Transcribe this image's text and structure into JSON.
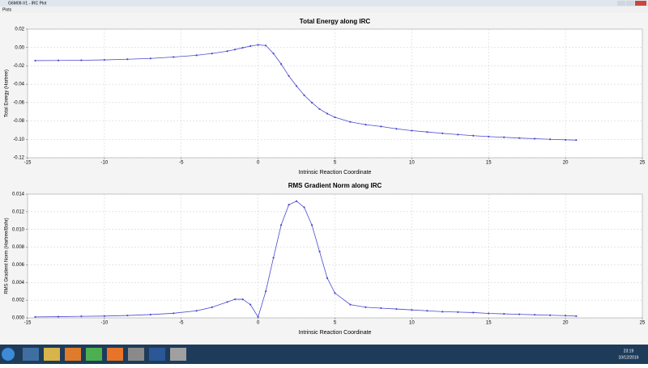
{
  "window": {
    "title": "G6M09-V1 - IRC Plot",
    "menu": [
      "Plots"
    ]
  },
  "chart_data": [
    {
      "type": "line",
      "title": "Total Energy along IRC",
      "x_label": "Intrinsic Reaction Coordinate",
      "y_label": "Total Energy (Hartree)",
      "x": [
        -14.5,
        -13,
        -11.5,
        -10,
        -8.5,
        -7,
        -5.5,
        -4,
        -3,
        -2,
        -1.5,
        -1,
        -0.5,
        0,
        0.5,
        1,
        1.5,
        2,
        2.5,
        3,
        3.5,
        4,
        4.5,
        5,
        6,
        7,
        8,
        9,
        10,
        11,
        12,
        13,
        14,
        15,
        16,
        17,
        18,
        19,
        20,
        20.7
      ],
      "series": [
        {
          "color": "#4a4ad0",
          "values": [
            -0.0143,
            -0.0141,
            -0.0139,
            -0.0135,
            -0.0128,
            -0.0119,
            -0.0104,
            -0.0085,
            -0.0065,
            -0.004,
            -0.0022,
            -0.0003,
            0.0015,
            0.0028,
            0.0022,
            -0.0065,
            -0.018,
            -0.031,
            -0.042,
            -0.052,
            -0.06,
            -0.067,
            -0.072,
            -0.076,
            -0.081,
            -0.084,
            -0.086,
            -0.0885,
            -0.0905,
            -0.092,
            -0.0935,
            -0.0948,
            -0.096,
            -0.097,
            -0.0978,
            -0.0986,
            -0.0993,
            -0.1,
            -0.1005,
            -0.1008
          ]
        }
      ],
      "xlim": [
        -15,
        25
      ],
      "xticks": [
        -15,
        -10,
        -5,
        0,
        5,
        10,
        15,
        20,
        25
      ],
      "ylim": [
        -0.12,
        0.02
      ],
      "yticks": [
        -0.12,
        {
          "value": -0.1,
          "label": "-0.10"
        },
        -0.08,
        -0.06,
        -0.04,
        -0.02,
        {
          "value": 0,
          "label": "0.00"
        },
        0.02
      ],
      "grid": true
    },
    {
      "type": "line",
      "title": "RMS Gradient Norm along IRC",
      "x_label": "Intrinsic Reaction Coordinate",
      "y_label": "RMS Gradient Norm (Hartree/Bohr)",
      "x": [
        -14.5,
        -13,
        -11.5,
        -10,
        -8.5,
        -7,
        -5.5,
        -4,
        -3,
        -2,
        -1.5,
        -1,
        -0.5,
        0,
        0.5,
        1,
        1.5,
        2,
        2.5,
        3,
        3.5,
        4,
        4.5,
        5,
        6,
        7,
        8,
        9,
        10,
        11,
        12,
        13,
        14,
        15,
        16,
        17,
        18,
        19,
        20,
        20.7
      ],
      "series": [
        {
          "color": "#4a4ad0",
          "values": [
            0.0001,
            0.00013,
            0.00017,
            0.0002,
            0.00027,
            0.00037,
            0.00052,
            0.0008,
            0.0012,
            0.0018,
            0.0021,
            0.0021,
            0.0015,
            0.0001,
            0.003,
            0.0068,
            0.0105,
            0.0128,
            0.0132,
            0.0125,
            0.0105,
            0.0075,
            0.0045,
            0.0028,
            0.0015,
            0.0012,
            0.0011,
            0.001,
            0.0009,
            0.0008,
            0.0007,
            0.00065,
            0.0006,
            0.0005,
            0.00045,
            0.0004,
            0.00035,
            0.0003,
            0.00025,
            0.0002
          ]
        }
      ],
      "xlim": [
        -15,
        25
      ],
      "xticks": [
        -15,
        -10,
        -5,
        0,
        5,
        10,
        15,
        20,
        25
      ],
      "ylim": [
        0,
        0.014
      ],
      "yticks": [
        {
          "value": 0,
          "label": "0.000"
        },
        0.002,
        0.004,
        0.006,
        0.008,
        {
          "value": 0.01,
          "label": "0.010"
        },
        0.012,
        0.014
      ],
      "grid": true
    }
  ],
  "taskbar": {
    "time": "23:19",
    "date": "10/12/2016"
  }
}
